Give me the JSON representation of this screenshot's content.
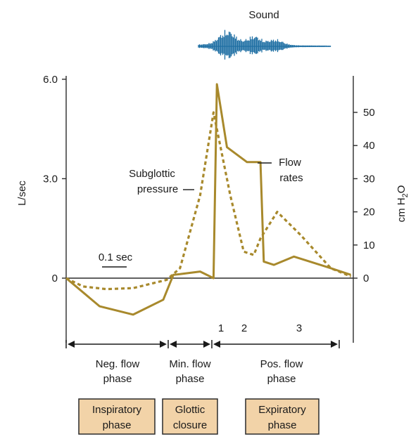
{
  "sound_label": "Sound",
  "left_axis": {
    "label": "L/sec",
    "ticks": [
      {
        "value": 0,
        "label": "0"
      },
      {
        "value": 3,
        "label": "3.0"
      },
      {
        "value": 6,
        "label": "6.0"
      }
    ],
    "range": [
      -2.2,
      6.3
    ]
  },
  "right_axis": {
    "label_main": "cm H",
    "label_sub": "2",
    "label_end": "O",
    "ticks": [
      {
        "value": 0,
        "label": "0"
      },
      {
        "value": 10,
        "label": "10"
      },
      {
        "value": 20,
        "label": "20"
      },
      {
        "value": 30,
        "label": "30"
      },
      {
        "value": 40,
        "label": "40"
      },
      {
        "value": 50,
        "label": "50"
      }
    ]
  },
  "scale_bar_label": "0.1 sec",
  "annotations": {
    "subglottic_line1": "Subglottic",
    "subglottic_line2": "pressure",
    "flow_line1": "Flow",
    "flow_line2": "rates"
  },
  "segment_labels": [
    "1",
    "2",
    "3"
  ],
  "phases": [
    {
      "line1": "Neg. flow",
      "line2": "phase"
    },
    {
      "line1": "Min. flow",
      "line2": "phase"
    },
    {
      "line1": "Pos. flow",
      "line2": "phase"
    }
  ],
  "boxes": [
    {
      "line1": "Inspiratory",
      "line2": "phase"
    },
    {
      "line1": "Glottic",
      "line2": "closure"
    },
    {
      "line1": "Expiratory",
      "line2": "phase"
    }
  ],
  "colors": {
    "curve": "#a8892c",
    "sound": "#1f6fa3",
    "box_fill": "#f2d3a8",
    "axis": "#2b2b2b"
  },
  "chart_data": {
    "type": "line",
    "x_unit": "sec",
    "series": [
      {
        "name": "Flow rates",
        "unit": "L/sec",
        "x": [
          0,
          0.1,
          0.2,
          0.29,
          0.32,
          0.34,
          0.4,
          0.44,
          0.45,
          0.48,
          0.54,
          0.58,
          0.59,
          0.62,
          0.68,
          0.79,
          0.85
        ],
        "y": [
          0,
          -0.85,
          -1.1,
          -0.65,
          0.1,
          0.12,
          0.2,
          0.0,
          5.85,
          3.95,
          3.5,
          3.5,
          0.5,
          0.4,
          0.65,
          0.3,
          0.1
        ]
      },
      {
        "name": "Subglottic pressure",
        "unit": "cm H2O",
        "x": [
          0,
          0.05,
          0.12,
          0.2,
          0.3,
          0.34,
          0.4,
          0.44,
          0.49,
          0.53,
          0.56,
          0.58,
          0.63,
          0.7,
          0.79,
          0.85
        ],
        "y": [
          0,
          -2.5,
          -3.3,
          -3.0,
          -0.5,
          3.0,
          25.0,
          50.0,
          25.0,
          8.0,
          7.0,
          12.0,
          20.0,
          13.0,
          3.0,
          0.5
        ]
      }
    ]
  }
}
